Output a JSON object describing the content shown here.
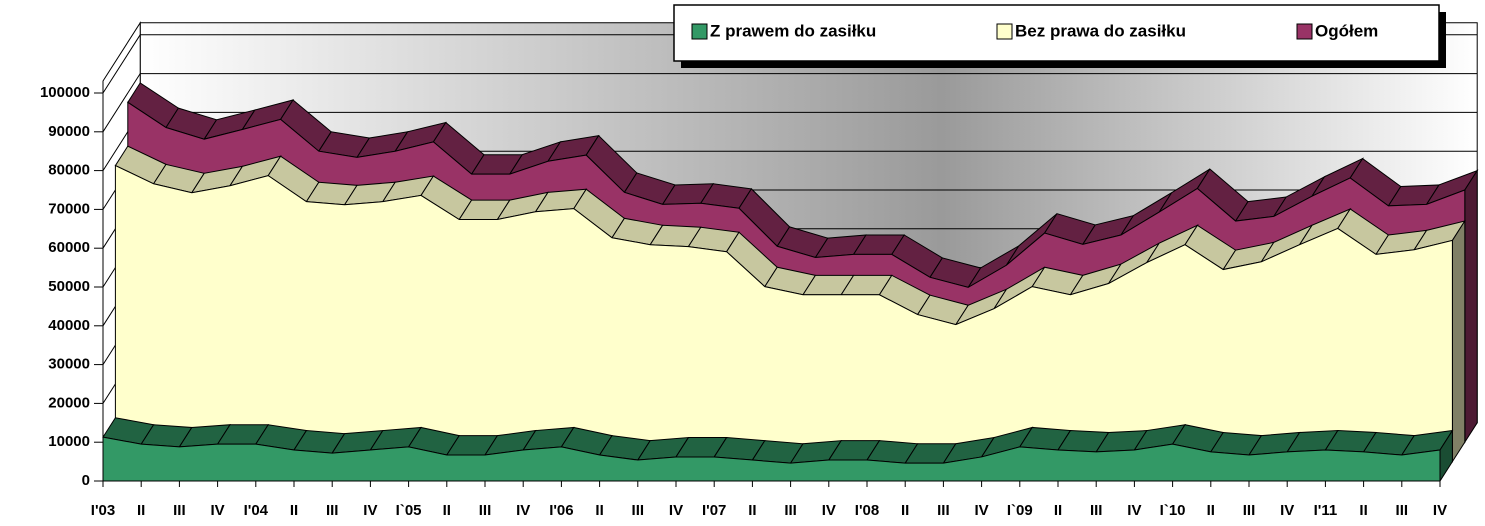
{
  "chart_data": {
    "type": "area3d",
    "categories": [
      "I'03",
      "II",
      "III",
      "IV",
      "I'04",
      "II",
      "III",
      "IV",
      "I`05",
      "II",
      "III",
      "IV",
      "I'06",
      "II",
      "III",
      "IV",
      "I'07",
      "II",
      "III",
      "IV",
      "I'08",
      "II",
      "III",
      "IV",
      "I`09",
      "II",
      "III",
      "IV",
      "I`10",
      "II",
      "III",
      "IV",
      "I'11",
      "II",
      "III",
      "IV"
    ],
    "series": [
      {
        "name": "Z prawem do zasiłku",
        "color": "#339966",
        "values": [
          11300,
          9500,
          8800,
          9500,
          9500,
          8000,
          7200,
          8000,
          8800,
          6700,
          6700,
          8000,
          8800,
          6700,
          5400,
          6200,
          6200,
          5400,
          4600,
          5400,
          5400,
          4600,
          4600,
          6200,
          8800,
          8000,
          7500,
          8000,
          9500,
          7500,
          6700,
          7500,
          8000,
          7500,
          6700,
          8000
        ]
      },
      {
        "name": "Bez prawa do zasiłku",
        "color": "#ffffcc",
        "values": [
          76300,
          71600,
          69300,
          71100,
          73700,
          67000,
          66200,
          67000,
          68600,
          62400,
          62400,
          64400,
          65200,
          57700,
          55900,
          55400,
          54100,
          45100,
          43000,
          43000,
          43000,
          37900,
          35300,
          39400,
          45100,
          43000,
          45900,
          51300,
          55900,
          49500,
          51500,
          55900,
          60100,
          53400,
          54600,
          57000
        ]
      },
      {
        "name": "Ogółem",
        "color": "#993366",
        "values": [
          87600,
          81100,
          78100,
          80600,
          83200,
          75000,
          73400,
          75000,
          77400,
          69100,
          69100,
          72400,
          74000,
          64400,
          61300,
          61600,
          60300,
          50500,
          47600,
          48400,
          48400,
          42500,
          39900,
          45600,
          53900,
          51000,
          53400,
          59300,
          65400,
          57000,
          58200,
          63400,
          68100,
          60900,
          61300,
          65000
        ]
      }
    ],
    "ylim": [
      0,
      100000
    ],
    "yticks": [
      0,
      10000,
      20000,
      30000,
      40000,
      50000,
      60000,
      70000,
      80000,
      90000,
      100000
    ],
    "grid": true,
    "legend": "top"
  }
}
